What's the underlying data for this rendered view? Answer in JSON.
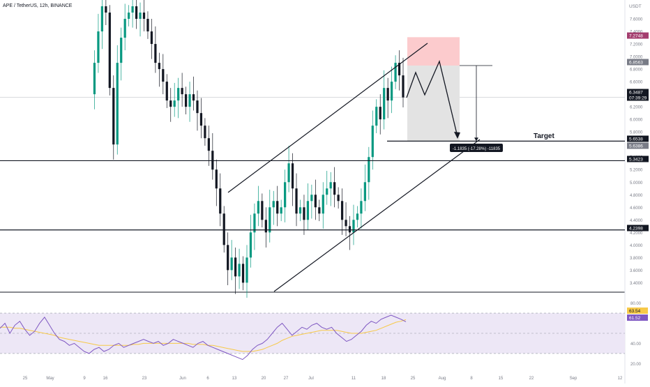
{
  "header": {
    "symbol": "APE / TetherUS, 12h, BINANCE"
  },
  "axis": {
    "currency": "USDT"
  },
  "colors": {
    "up": "#089981",
    "down": "#131722",
    "rsi_line": "#7e57c2",
    "rsi_ma": "#f7c948",
    "rsi_band": "#ede7f6",
    "stop_zone": "#fccbcd",
    "target_zone": "#e3e3e3",
    "current_price_tag": "#131722",
    "stop_tag": "#a33d6e",
    "entry_tag": "#787b86"
  },
  "chart_data": [
    {
      "type": "line",
      "title": "APE / TetherUS, 12h, BINANCE",
      "price_scale": {
        "ylim": [
          3.26,
          7.9
        ],
        "ticks": [
          "7.6000",
          "7.4000",
          "7.2000",
          "7.0000",
          "6.8000",
          "6.6000",
          "6.4000",
          "6.2000",
          "6.0000",
          "5.8000",
          "5.6000",
          "5.4000",
          "5.2000",
          "5.0000",
          "4.8000",
          "4.6000",
          "4.4000",
          "4.2000",
          "4.0000",
          "3.8000",
          "3.6000",
          "3.4000"
        ]
      },
      "x_ticks": [
        "25",
        "May",
        "9",
        "16",
        "23",
        "Jun",
        "6",
        "13",
        "20",
        "27",
        "Jul",
        "11",
        "18",
        "25",
        "Aug",
        "8",
        "15",
        "22",
        "Sep",
        "12"
      ],
      "series": [
        {
          "values": [
            6.4,
            6.9,
            7.4,
            7.8,
            7.7,
            6.5,
            5.6,
            6.9,
            7.3,
            7.6,
            7.7,
            7.8,
            7.6,
            7.7,
            7.6,
            7.4,
            7.2,
            6.9,
            6.8,
            6.6,
            6.3,
            6.2,
            6.3,
            6.5,
            6.4,
            6.2,
            6.4,
            6.3,
            6.1,
            5.9,
            5.7,
            5.5,
            5.2,
            4.9,
            4.5,
            4.0,
            3.6,
            3.8,
            3.5,
            3.7,
            3.4,
            3.8,
            4.2,
            4.5,
            4.7,
            4.4,
            4.2,
            4.6,
            4.7,
            4.5,
            4.6,
            5.0,
            5.3,
            4.9,
            4.5,
            4.6,
            4.4,
            4.7,
            4.8,
            4.6,
            4.5,
            4.8,
            4.9,
            5.0,
            4.8,
            4.7,
            4.4,
            4.3,
            4.2,
            4.4,
            4.5,
            4.7,
            5.0,
            5.4,
            5.9,
            6.2,
            6.0,
            6.5,
            6.3,
            6.6,
            6.9,
            6.7,
            6.35
          ]
        }
      ],
      "horizontal_levels": [
        {
          "price": 5.6538,
          "label": "5.6538"
        },
        {
          "price": 5.3423,
          "label": "5.3423"
        },
        {
          "price": 4.2398,
          "label": "4.2398"
        }
      ],
      "price_tags": [
        {
          "price": 7.2748,
          "label": "7.2748"
        },
        {
          "price": 6.8563,
          "label": "6.8563"
        },
        {
          "price": 6.3487,
          "label": "6.3487",
          "sublabel": "07:39:29"
        },
        {
          "price": 5.6538,
          "label": "5.6538"
        },
        {
          "price": 5.6386,
          "label": "5.6386"
        },
        {
          "price": 5.3423,
          "label": "5.3423"
        },
        {
          "price": 4.2398,
          "label": "4.2398"
        }
      ],
      "annotations": {
        "target_label": "Target",
        "measure_label": "-1.1835 (-17.28%) -11835"
      }
    },
    {
      "type": "line",
      "title": "",
      "ylim": [
        20,
        80
      ],
      "ticks": [
        "80.00",
        "40.00",
        "20.00"
      ],
      "bands": [
        70,
        50,
        30
      ],
      "series": [
        {
          "values": [
            55,
            60,
            50,
            58,
            62,
            54,
            48,
            52,
            60,
            66,
            58,
            50,
            44,
            42,
            38,
            40,
            36,
            32,
            30,
            34,
            36,
            32,
            34,
            38,
            40,
            36,
            38,
            40,
            42,
            44,
            42,
            40,
            42,
            38,
            40,
            44,
            42,
            40,
            38,
            36,
            40,
            42,
            38,
            36,
            34,
            32,
            30,
            28,
            26,
            24,
            28,
            34,
            38,
            40,
            44,
            50,
            56,
            60,
            54,
            48,
            52,
            56,
            54,
            58,
            60,
            56,
            54,
            56,
            50,
            46,
            42,
            44,
            48,
            52,
            58,
            62,
            60,
            64,
            66,
            68,
            66,
            64,
            61.52
          ]
        },
        {
          "values": [
            56,
            56,
            56,
            55,
            55,
            54,
            53,
            52,
            51,
            50,
            49,
            48,
            46,
            45,
            44,
            43,
            42,
            41,
            40,
            39,
            38,
            38,
            38,
            38,
            38,
            38,
            38,
            39,
            39,
            40,
            40,
            40,
            40,
            40,
            40,
            40,
            40,
            40,
            40,
            39,
            39,
            39,
            38,
            38,
            37,
            36,
            35,
            34,
            33,
            32,
            32,
            32,
            33,
            34,
            36,
            38,
            40,
            43,
            45,
            47,
            48,
            49,
            50,
            51,
            52,
            53,
            53,
            53,
            53,
            52,
            51,
            50,
            50,
            50,
            51,
            52,
            53,
            55,
            57,
            59,
            61,
            62,
            63.54
          ]
        }
      ],
      "tags": [
        {
          "value": 63.54,
          "label": "63.54"
        },
        {
          "value": 61.52,
          "label": "61.52"
        }
      ]
    }
  ]
}
